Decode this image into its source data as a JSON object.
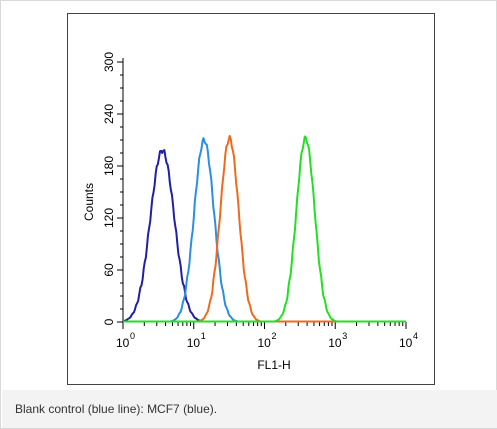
{
  "chart_data": {
    "type": "line",
    "title": "",
    "xlabel": "FL1-H",
    "ylabel": "Counts",
    "x_scale": "log",
    "xlim": [
      1,
      10000
    ],
    "ylim": [
      0,
      300
    ],
    "x_ticks": [
      {
        "value": 1,
        "base": "10",
        "exp": "0"
      },
      {
        "value": 10,
        "base": "10",
        "exp": "1"
      },
      {
        "value": 100,
        "base": "10",
        "exp": "2"
      },
      {
        "value": 1000,
        "base": "10",
        "exp": "3"
      },
      {
        "value": 10000,
        "base": "10",
        "exp": "4"
      }
    ],
    "y_ticks": [
      0,
      60,
      120,
      180,
      240,
      300
    ],
    "grid": false,
    "legend": "none",
    "series": [
      {
        "color": "#1f1fa8",
        "peak_x": 3.6,
        "peak_y": 198,
        "width_decades": 0.17
      },
      {
        "color": "#2a8fe0",
        "peak_x": 14,
        "peak_y": 210,
        "width_decades": 0.14
      },
      {
        "color": "#f06a1e",
        "peak_x": 32,
        "peak_y": 212,
        "width_decades": 0.13
      },
      {
        "color": "#22e022",
        "peak_x": 380,
        "peak_y": 212,
        "width_decades": 0.13
      }
    ]
  },
  "caption": {
    "text": "Blank control (blue line): MCF7 (blue)."
  }
}
